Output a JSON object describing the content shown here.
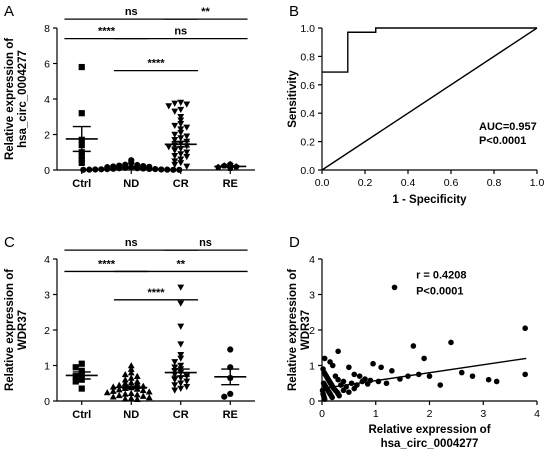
{
  "chart_data": [
    {
      "panel": "A",
      "type": "scatter",
      "ylabel_lines": [
        "Relative expression of",
        "hsa_circ_0004277"
      ],
      "ylim": [
        0,
        8
      ],
      "yticks": [
        0,
        2,
        4,
        6,
        8
      ],
      "categories": [
        "Ctrl",
        "ND",
        "CR",
        "RE"
      ],
      "markers": [
        "square",
        "circle",
        "triangle-down",
        "pentagon"
      ],
      "groups": [
        {
          "name": "Ctrl",
          "mean": 1.75,
          "sem": 0.7,
          "points": [
            5.8,
            3.2,
            1.7,
            1.4,
            1.0,
            0.8,
            0.6,
            0.4
          ]
        },
        {
          "name": "ND",
          "mean": 0.15,
          "sem": 0.05,
          "points": [
            0.55,
            0.4,
            0.3,
            0.28,
            0.25,
            0.22,
            0.2,
            0.18,
            0.16,
            0.14,
            0.12,
            0.1,
            0.1,
            0.08,
            0.07,
            0.06,
            0.05,
            0.05,
            0.04,
            0.03,
            0.03,
            0.02,
            0.02,
            0.01,
            0.01,
            0.01
          ]
        },
        {
          "name": "CR",
          "mean": 1.45,
          "sem": 0.15,
          "points": [
            3.8,
            3.75,
            3.7,
            3.6,
            3.4,
            3.3,
            3.0,
            2.8,
            2.6,
            2.5,
            2.4,
            2.3,
            2.1,
            2.0,
            1.9,
            1.8,
            1.7,
            1.6,
            1.5,
            1.4,
            1.35,
            1.3,
            1.2,
            1.1,
            1.0,
            0.9,
            0.8,
            0.75,
            0.6,
            0.5,
            0.4,
            0.3,
            0.2
          ]
        },
        {
          "name": "RE",
          "mean": 0.2,
          "sem": 0.04,
          "points": [
            0.32,
            0.24,
            0.19,
            0.15,
            0.1
          ]
        }
      ],
      "brackets": [
        {
          "from": 0,
          "to": 2,
          "level": 8.5,
          "label": "ns"
        },
        {
          "from": 2,
          "to": 3,
          "level": 8.5,
          "label": "**"
        },
        {
          "from": 0,
          "to": 1,
          "level": 7.4,
          "label": "****"
        },
        {
          "from": 1,
          "to": 3,
          "level": 7.4,
          "label": "ns"
        },
        {
          "from": 1,
          "to": 2,
          "level": 5.6,
          "label": "****"
        }
      ]
    },
    {
      "panel": "B",
      "type": "line",
      "xlabel": "1 - Specificity",
      "ylabel": "Sensitivity",
      "xlim": [
        0,
        1
      ],
      "ylim": [
        0,
        1
      ],
      "xticks": [
        "0.0",
        "0.2",
        "0.4",
        "0.6",
        "0.8",
        "1.0"
      ],
      "yticks": [
        "0.0",
        "0.2",
        "0.4",
        "0.6",
        "0.8",
        "1.0"
      ],
      "series": [
        {
          "points": [
            [
              0,
              0.69
            ],
            [
              0.12,
              0.69
            ],
            [
              0.12,
              0.97
            ],
            [
              0.25,
              0.97
            ],
            [
              0.25,
              1.0
            ],
            [
              1.0,
              1.0
            ]
          ]
        },
        {
          "points": [
            [
              0,
              0
            ],
            [
              1,
              1
            ]
          ]
        }
      ],
      "annotations": [
        "AUC=0.957",
        "P<0.0001"
      ]
    },
    {
      "panel": "C",
      "type": "scatter",
      "ylabel_lines": [
        "Relative expression of",
        "WDR37"
      ],
      "ylim": [
        0,
        4
      ],
      "yticks": [
        0,
        1,
        2,
        3,
        4
      ],
      "categories": [
        "Ctrl",
        "ND",
        "CR",
        "RE"
      ],
      "markers": [
        "square",
        "triangle-up",
        "triangle-down",
        "circle"
      ],
      "groups": [
        {
          "name": "Ctrl",
          "mean": 0.72,
          "sem": 0.1,
          "points": [
            1.05,
            0.95,
            0.85,
            0.75,
            0.7,
            0.6,
            0.55,
            0.35
          ]
        },
        {
          "name": "ND",
          "mean": 0.38,
          "sem": 0.03,
          "points": [
            1.0,
            0.9,
            0.8,
            0.75,
            0.7,
            0.65,
            0.6,
            0.55,
            0.52,
            0.5,
            0.48,
            0.45,
            0.42,
            0.4,
            0.38,
            0.36,
            0.34,
            0.32,
            0.3,
            0.28,
            0.26,
            0.24,
            0.22,
            0.2,
            0.18,
            0.16,
            0.14,
            0.12,
            0.1,
            0.08,
            0.06,
            0.05
          ]
        },
        {
          "name": "CR",
          "mean": 0.8,
          "sem": 0.1,
          "points": [
            3.2,
            2.75,
            2.1,
            1.6,
            1.3,
            1.2,
            1.1,
            1.0,
            0.95,
            0.9,
            0.85,
            0.8,
            0.75,
            0.7,
            0.65,
            0.6,
            0.55,
            0.5,
            0.45,
            0.4,
            0.35,
            0.3
          ]
        },
        {
          "name": "RE",
          "mean": 0.68,
          "sem": 0.22,
          "points": [
            1.45,
            0.95,
            0.65,
            0.2,
            0.12
          ]
        }
      ],
      "brackets": [
        {
          "from": 0,
          "to": 2,
          "level": 4.25,
          "label": "ns"
        },
        {
          "from": 2,
          "to": 3,
          "level": 4.25,
          "label": "ns"
        },
        {
          "from": 0,
          "to": 1,
          "level": 3.65,
          "label": "****"
        },
        {
          "from": 1,
          "to": 3,
          "level": 3.65,
          "label": "**"
        },
        {
          "from": 1,
          "to": 2,
          "level": 2.85,
          "label": "****"
        }
      ]
    },
    {
      "panel": "D",
      "type": "scatter",
      "xlabel_lines": [
        "Relative expression of",
        "hsa_circ_0004277"
      ],
      "ylabel_lines": [
        "Relative expression of",
        "WDR37"
      ],
      "xlim": [
        0,
        4
      ],
      "ylim": [
        0,
        4
      ],
      "xticks": [
        0,
        1,
        2,
        3,
        4
      ],
      "yticks": [
        0,
        1,
        2,
        3,
        4
      ],
      "regression": {
        "x0": 0,
        "y0": 0.35,
        "x1": 3.8,
        "y1": 1.2
      },
      "points": [
        [
          1.35,
          3.2
        ],
        [
          3.78,
          2.05
        ],
        [
          2.4,
          1.65
        ],
        [
          1.7,
          1.55
        ],
        [
          1.9,
          1.2
        ],
        [
          3.78,
          0.75
        ],
        [
          0.3,
          1.4
        ],
        [
          0.05,
          1.2
        ],
        [
          0.15,
          1.1
        ],
        [
          0.2,
          1.0
        ],
        [
          0.5,
          0.95
        ],
        [
          0.95,
          1.05
        ],
        [
          1.1,
          0.95
        ],
        [
          1.3,
          0.85
        ],
        [
          1.8,
          0.75
        ],
        [
          2.0,
          0.7
        ],
        [
          2.6,
          0.8
        ],
        [
          2.8,
          0.7
        ],
        [
          3.1,
          0.6
        ],
        [
          3.25,
          0.55
        ],
        [
          0.6,
          0.75
        ],
        [
          0.7,
          0.7
        ],
        [
          0.8,
          0.62
        ],
        [
          0.9,
          0.58
        ],
        [
          1.05,
          0.55
        ],
        [
          1.2,
          0.5
        ],
        [
          1.45,
          0.62
        ],
        [
          1.6,
          0.7
        ],
        [
          2.2,
          0.45
        ],
        [
          0.4,
          0.55
        ],
        [
          0.02,
          0.9
        ],
        [
          0.04,
          0.8
        ],
        [
          0.06,
          0.75
        ],
        [
          0.08,
          0.7
        ],
        [
          0.1,
          0.65
        ],
        [
          0.12,
          0.6
        ],
        [
          0.14,
          0.55
        ],
        [
          0.16,
          0.5
        ],
        [
          0.18,
          0.45
        ],
        [
          0.2,
          0.4
        ],
        [
          0.22,
          0.35
        ],
        [
          0.25,
          0.3
        ],
        [
          0.28,
          0.25
        ],
        [
          0.3,
          0.2
        ],
        [
          0.32,
          0.15
        ],
        [
          0.03,
          0.5
        ],
        [
          0.05,
          0.45
        ],
        [
          0.07,
          0.4
        ],
        [
          0.09,
          0.35
        ],
        [
          0.11,
          0.3
        ],
        [
          0.13,
          0.25
        ],
        [
          0.15,
          0.2
        ],
        [
          0.17,
          0.15
        ],
        [
          0.19,
          0.1
        ],
        [
          0.01,
          0.3
        ],
        [
          0.02,
          0.2
        ],
        [
          0.03,
          0.15
        ],
        [
          0.04,
          0.1
        ],
        [
          0.05,
          0.05
        ],
        [
          0.35,
          0.45
        ],
        [
          0.45,
          0.4
        ],
        [
          0.55,
          0.5
        ],
        [
          0.65,
          0.45
        ],
        [
          0.75,
          0.55
        ],
        [
          0.85,
          0.48
        ],
        [
          0.4,
          0.3
        ],
        [
          0.5,
          0.25
        ],
        [
          0.6,
          0.35
        ],
        [
          0.3,
          0.6
        ],
        [
          0.25,
          0.7
        ]
      ],
      "annotations": [
        "r = 0.4208",
        "P<0.0001"
      ]
    }
  ]
}
